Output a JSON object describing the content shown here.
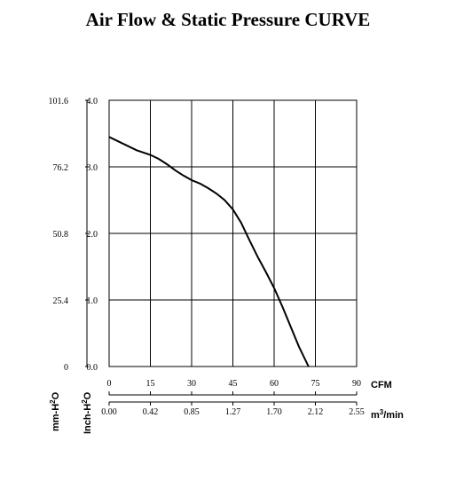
{
  "chart_data": {
    "type": "line",
    "title": "Air Flow & Static Pressure CURVE",
    "x_primary": {
      "unit": "CFM",
      "ticks": [
        "0",
        "15",
        "30",
        "45",
        "60",
        "75",
        "90"
      ],
      "range": [
        0,
        90
      ]
    },
    "x_secondary": {
      "unit_base": "m",
      "unit_sup": "3",
      "unit_tail": "/min",
      "ticks": [
        "0.00",
        "0.42",
        "0.85",
        "1.27",
        "1.70",
        "2.12",
        "2.55"
      ]
    },
    "y_primary": {
      "label_base": "Inch-H",
      "label_sup": "2",
      "label_tail": "O",
      "ticks": [
        "0.0",
        "1.0",
        "2.0",
        "3.0",
        "4.0"
      ],
      "range": [
        0,
        4
      ]
    },
    "y_secondary": {
      "label_base": "mm-H",
      "label_sup": "2",
      "label_tail": "O",
      "ticks": [
        "0",
        "25.4",
        "50.8",
        "76.2",
        "101.6"
      ]
    },
    "grid": true,
    "series": [
      {
        "x": [
          0,
          5,
          10,
          15,
          18,
          21,
          24,
          27,
          30,
          33,
          36,
          39,
          42,
          45,
          48,
          51,
          54,
          57,
          60,
          63,
          66,
          69,
          72.5
        ],
        "y": [
          3.45,
          3.35,
          3.25,
          3.18,
          3.12,
          3.04,
          2.95,
          2.87,
          2.8,
          2.75,
          2.68,
          2.6,
          2.5,
          2.36,
          2.16,
          1.9,
          1.65,
          1.42,
          1.18,
          0.9,
          0.6,
          0.3,
          0.0
        ]
      }
    ]
  }
}
